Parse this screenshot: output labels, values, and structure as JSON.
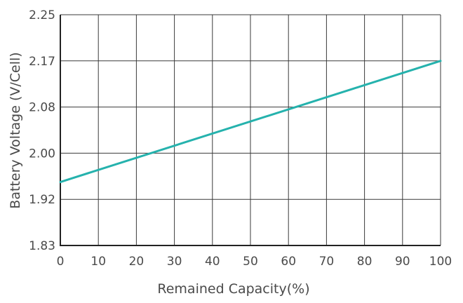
{
  "chart_data": {
    "type": "line",
    "title": "",
    "xlabel": "Remained Capacity(%)",
    "ylabel": "Battery Voltage (V/Cell)",
    "xlim": [
      0,
      100
    ],
    "ylim": [
      1.83,
      2.25
    ],
    "x_ticks": [
      "0",
      "10",
      "20",
      "30",
      "40",
      "50",
      "60",
      "70",
      "80",
      "90",
      "100"
    ],
    "y_ticks": [
      "1.83",
      "1.92",
      "2.00",
      "2.08",
      "2.17",
      "2.25"
    ],
    "grid": true,
    "legend": "none",
    "line_color": "#25b2ad",
    "series": [
      {
        "x": [
          0,
          100
        ],
        "y": [
          1.95,
          2.17
        ]
      }
    ]
  }
}
